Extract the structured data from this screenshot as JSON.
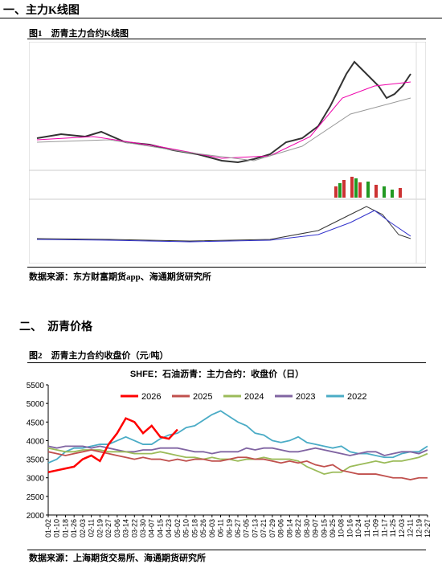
{
  "section1": {
    "heading": "一、主力K线图",
    "figure_title": "图1　沥青主力合约K线图",
    "source": "数据来源：东方财富期货app、海通期货研究所"
  },
  "section2": {
    "heading": "二、　沥青价格",
    "figure_title": "图2　沥青主力合约收盘价（元/吨）",
    "source": "数据来源：上海期货交易所、海通期货研究所"
  },
  "chart_data": {
    "type": "line",
    "title": "SHFE：石油沥青：主力合约：收盘价（日）",
    "categories": [
      "01-02",
      "01-10",
      "01-18",
      "01-26",
      "02-03",
      "02-11",
      "02-19",
      "02-27",
      "03-06",
      "03-14",
      "03-22",
      "03-30",
      "04-07",
      "04-15",
      "04-23",
      "05-02",
      "05-10",
      "05-18",
      "05-26",
      "06-03",
      "06-11",
      "06-19",
      "06-27",
      "07-05",
      "07-13",
      "07-21",
      "07-29",
      "08-06",
      "08-14",
      "08-22",
      "08-30",
      "09-07",
      "09-15",
      "09-25",
      "10-08",
      "10-16",
      "10-24",
      "11-01",
      "11-09",
      "11-17",
      "11-25",
      "12-03",
      "12-11",
      "12-19",
      "12-27"
    ],
    "ylim": [
      2000,
      5500
    ],
    "yticks": [
      2000,
      2500,
      3000,
      3500,
      4000,
      4500,
      5000,
      5500
    ],
    "grid": false,
    "series": [
      {
        "name": "2026",
        "color": "#ff0000",
        "values": [
          3150,
          3200,
          3250,
          3300,
          3500,
          3600,
          3450,
          3900,
          4200,
          4600,
          4500,
          4200,
          4400,
          4100,
          4050,
          4300,
          null,
          null,
          null,
          null,
          null,
          null,
          null,
          null,
          null,
          null,
          null,
          null,
          null,
          null,
          null,
          null,
          null,
          null,
          null,
          null,
          null,
          null,
          null,
          null,
          null,
          null,
          null,
          null,
          null
        ]
      },
      {
        "name": "2025",
        "color": "#c0504d",
        "values": [
          3700,
          3650,
          3600,
          3650,
          3700,
          3750,
          3700,
          3650,
          3600,
          3550,
          3500,
          3550,
          3500,
          3500,
          3450,
          3500,
          3450,
          3500,
          3500,
          3450,
          3450,
          3500,
          3550,
          3550,
          3500,
          3500,
          3450,
          3400,
          3450,
          3400,
          3450,
          3350,
          3300,
          3350,
          3200,
          3150,
          3100,
          3100,
          3100,
          3050,
          3000,
          3000,
          2950,
          3000,
          3000
        ]
      },
      {
        "name": "2024",
        "color": "#9bbb59",
        "values": [
          3800,
          3750,
          3700,
          3700,
          3750,
          3750,
          3750,
          3700,
          3700,
          3700,
          3650,
          3650,
          3650,
          3700,
          3650,
          3600,
          3550,
          3550,
          3500,
          3550,
          3500,
          3500,
          3450,
          3500,
          3500,
          3550,
          3500,
          3500,
          3500,
          3450,
          3300,
          3200,
          3100,
          3150,
          3150,
          3300,
          3350,
          3400,
          3450,
          3400,
          3450,
          3450,
          3500,
          3550,
          3650
        ]
      },
      {
        "name": "2023",
        "color": "#8064a2",
        "values": [
          3850,
          3800,
          3850,
          3850,
          3850,
          3800,
          3850,
          3800,
          3750,
          3700,
          3700,
          3750,
          3750,
          3800,
          3800,
          3800,
          3750,
          3700,
          3700,
          3650,
          3700,
          3700,
          3700,
          3800,
          3750,
          3800,
          3800,
          3750,
          3700,
          3700,
          3750,
          3800,
          3750,
          3700,
          3650,
          3600,
          3650,
          3700,
          3700,
          3600,
          3650,
          3700,
          3700,
          3650,
          3750
        ]
      },
      {
        "name": "2022",
        "color": "#4bacc6",
        "values": [
          3400,
          3500,
          3700,
          3800,
          3800,
          3850,
          3900,
          3900,
          4000,
          4100,
          4000,
          3900,
          3900,
          4050,
          4150,
          4200,
          4350,
          4400,
          4550,
          4700,
          4800,
          4650,
          4500,
          4400,
          4200,
          4150,
          4000,
          3950,
          4000,
          4100,
          3950,
          3900,
          3850,
          3800,
          3850,
          3700,
          3650,
          3650,
          3600,
          3550,
          3550,
          3650,
          3700,
          3700,
          3850
        ]
      }
    ]
  }
}
